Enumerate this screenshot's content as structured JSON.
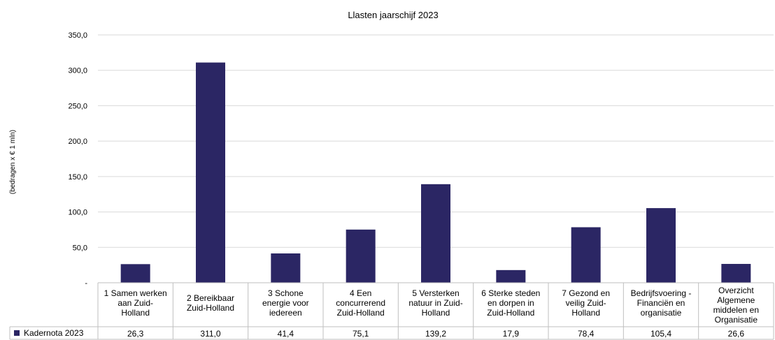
{
  "chart_data": {
    "type": "bar",
    "title": "Llasten jaarschijf 2023",
    "ylabel": "(bedragen x € 1 mln)",
    "xlabel": "",
    "ylim": [
      0,
      350
    ],
    "yticks": [
      0,
      50,
      100,
      150,
      200,
      250,
      300,
      350
    ],
    "ytick_labels": [
      "-",
      "50,0",
      "100,0",
      "150,0",
      "200,0",
      "250,0",
      "300,0",
      "350,0"
    ],
    "grid": true,
    "legend_placement": "bottom-left, in data table",
    "categories": [
      [
        "1 Samen werken",
        "aan Zuid-",
        "Holland"
      ],
      [
        "2 Bereikbaar",
        "Zuid-Holland"
      ],
      [
        "3 Schone",
        "energie voor",
        "iedereen"
      ],
      [
        "4 Een",
        "concurrerend",
        "Zuid-Holland"
      ],
      [
        "5 Versterken",
        "natuur in Zuid-",
        "Holland"
      ],
      [
        "6 Sterke steden",
        "en dorpen in",
        "Zuid-Holland"
      ],
      [
        "7 Gezond en",
        "veilig Zuid-",
        "Holland"
      ],
      [
        "Bedrijfsvoering -",
        "Financiën en",
        "organisatie"
      ],
      [
        "Overzicht",
        "Algemene",
        "middelen en",
        "Organisatie"
      ]
    ],
    "series": [
      {
        "name": "Kadernota 2023",
        "color": "#2b2664",
        "values": [
          26.3,
          311.0,
          41.4,
          75.1,
          139.2,
          17.9,
          78.4,
          105.4,
          26.6
        ],
        "value_labels": [
          "26,3",
          "311,0",
          "41,4",
          "75,1",
          "139,2",
          "17,9",
          "78,4",
          "105,4",
          "26,6"
        ]
      }
    ]
  }
}
